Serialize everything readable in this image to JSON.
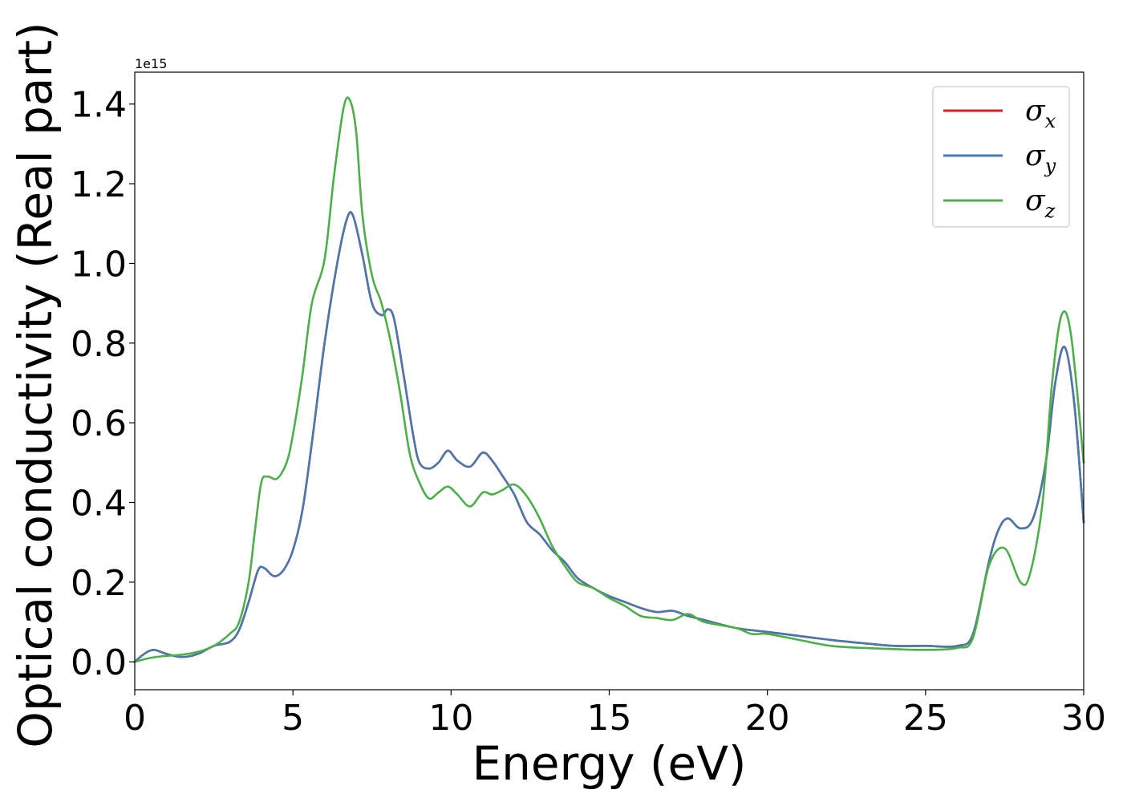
{
  "chart_data": {
    "type": "line",
    "xlabel": "Energy (eV)",
    "ylabel": "Optical conductivity (Real part)",
    "y_offset_text": "1e15",
    "xlim": [
      0,
      30
    ],
    "ylim": [
      -0.07,
      1.48
    ],
    "x_ticks": [
      0,
      5,
      10,
      15,
      20,
      25,
      30
    ],
    "x_tick_labels": [
      "0",
      "5",
      "10",
      "15",
      "20",
      "25",
      "30"
    ],
    "y_ticks": [
      0.0,
      0.2,
      0.4,
      0.6,
      0.8,
      1.0,
      1.2,
      1.4
    ],
    "y_tick_labels": [
      "0.0",
      "0.2",
      "0.4",
      "0.6",
      "0.8",
      "1.0",
      "1.2",
      "1.4"
    ],
    "grid": false,
    "legend_position": "top-right",
    "legend": [
      {
        "symbol": "σ",
        "subscript": "x",
        "color": "#e41a1c"
      },
      {
        "symbol": "σ",
        "subscript": "y",
        "color": "#4a78ac"
      },
      {
        "symbol": "σ",
        "subscript": "z",
        "color": "#4daf4a"
      }
    ],
    "series": [
      {
        "color": "#e41a1c",
        "x": [
          0,
          0.3,
          0.6,
          1,
          1.5,
          2,
          2.5,
          3,
          3.3,
          3.6,
          3.9,
          4.1,
          4.4,
          4.7,
          5,
          5.3,
          5.6,
          6,
          6.4,
          6.7,
          6.9,
          7.2,
          7.5,
          7.8,
          8,
          8.2,
          8.5,
          8.8,
          9,
          9.3,
          9.6,
          9.9,
          10.2,
          10.6,
          11,
          11.3,
          11.6,
          12,
          12.4,
          12.8,
          13.2,
          13.6,
          14,
          14.5,
          15,
          15.5,
          16,
          16.5,
          17,
          17.5,
          18,
          19,
          20,
          21,
          22,
          23,
          24,
          25,
          26,
          26.5,
          27,
          27.3,
          27.6,
          28,
          28.4,
          28.8,
          29.1,
          29.4,
          29.7,
          30
        ],
        "values": [
          0,
          0.02,
          0.03,
          0.02,
          0.012,
          0.02,
          0.04,
          0.05,
          0.08,
          0.15,
          0.23,
          0.235,
          0.215,
          0.23,
          0.28,
          0.38,
          0.55,
          0.8,
          1.0,
          1.11,
          1.12,
          1.02,
          0.9,
          0.87,
          0.885,
          0.86,
          0.72,
          0.57,
          0.5,
          0.485,
          0.5,
          0.53,
          0.505,
          0.49,
          0.525,
          0.505,
          0.47,
          0.42,
          0.35,
          0.32,
          0.28,
          0.25,
          0.21,
          0.185,
          0.165,
          0.15,
          0.135,
          0.125,
          0.128,
          0.115,
          0.105,
          0.085,
          0.075,
          0.065,
          0.055,
          0.047,
          0.04,
          0.04,
          0.04,
          0.07,
          0.25,
          0.33,
          0.36,
          0.335,
          0.36,
          0.5,
          0.7,
          0.79,
          0.65,
          0.35
        ]
      },
      {
        "color": "#4a78ac",
        "x": [
          0,
          0.3,
          0.6,
          1,
          1.5,
          2,
          2.5,
          3,
          3.3,
          3.6,
          3.9,
          4.1,
          4.4,
          4.7,
          5,
          5.3,
          5.6,
          6,
          6.4,
          6.7,
          6.9,
          7.2,
          7.5,
          7.8,
          8,
          8.2,
          8.5,
          8.8,
          9,
          9.3,
          9.6,
          9.9,
          10.2,
          10.6,
          11,
          11.3,
          11.6,
          12,
          12.4,
          12.8,
          13.2,
          13.6,
          14,
          14.5,
          15,
          15.5,
          16,
          16.5,
          17,
          17.5,
          18,
          19,
          20,
          21,
          22,
          23,
          24,
          25,
          26,
          26.5,
          27,
          27.3,
          27.6,
          28,
          28.4,
          28.8,
          29.1,
          29.4,
          29.7,
          30
        ],
        "values": [
          0,
          0.02,
          0.03,
          0.02,
          0.012,
          0.02,
          0.04,
          0.05,
          0.08,
          0.15,
          0.23,
          0.235,
          0.215,
          0.23,
          0.28,
          0.38,
          0.55,
          0.8,
          1.0,
          1.11,
          1.12,
          1.02,
          0.9,
          0.87,
          0.885,
          0.86,
          0.72,
          0.57,
          0.5,
          0.485,
          0.5,
          0.53,
          0.505,
          0.49,
          0.525,
          0.505,
          0.47,
          0.42,
          0.35,
          0.32,
          0.28,
          0.25,
          0.21,
          0.185,
          0.165,
          0.15,
          0.135,
          0.125,
          0.128,
          0.115,
          0.105,
          0.085,
          0.075,
          0.065,
          0.055,
          0.047,
          0.04,
          0.04,
          0.04,
          0.07,
          0.25,
          0.33,
          0.36,
          0.335,
          0.36,
          0.5,
          0.7,
          0.79,
          0.65,
          0.35
        ]
      },
      {
        "color": "#4daf4a",
        "x": [
          0,
          0.5,
          1,
          1.5,
          2,
          2.5,
          3,
          3.3,
          3.6,
          3.8,
          4,
          4.2,
          4.5,
          4.8,
          5,
          5.3,
          5.6,
          6,
          6.3,
          6.6,
          6.8,
          7,
          7.2,
          7.5,
          7.8,
          8.1,
          8.4,
          8.7,
          9,
          9.3,
          9.6,
          9.9,
          10.2,
          10.6,
          11,
          11.3,
          11.6,
          12,
          12.4,
          12.8,
          13.2,
          13.6,
          14,
          14.5,
          15,
          15.5,
          16,
          16.5,
          17,
          17.5,
          18,
          19,
          19.5,
          20,
          21,
          22,
          23,
          24,
          25,
          26,
          26.5,
          27,
          27.5,
          28,
          28.3,
          28.7,
          29,
          29.3,
          29.6,
          30
        ],
        "values": [
          0,
          0.01,
          0.015,
          0.018,
          0.025,
          0.04,
          0.07,
          0.1,
          0.2,
          0.33,
          0.45,
          0.465,
          0.46,
          0.5,
          0.57,
          0.72,
          0.9,
          1.01,
          1.22,
          1.39,
          1.41,
          1.33,
          1.12,
          0.97,
          0.9,
          0.8,
          0.67,
          0.52,
          0.45,
          0.41,
          0.425,
          0.44,
          0.42,
          0.39,
          0.425,
          0.42,
          0.43,
          0.445,
          0.415,
          0.36,
          0.29,
          0.24,
          0.2,
          0.185,
          0.16,
          0.14,
          0.115,
          0.11,
          0.105,
          0.12,
          0.1,
          0.085,
          0.07,
          0.07,
          0.055,
          0.04,
          0.035,
          0.032,
          0.03,
          0.035,
          0.06,
          0.24,
          0.285,
          0.2,
          0.22,
          0.4,
          0.7,
          0.87,
          0.82,
          0.5
        ]
      }
    ]
  }
}
